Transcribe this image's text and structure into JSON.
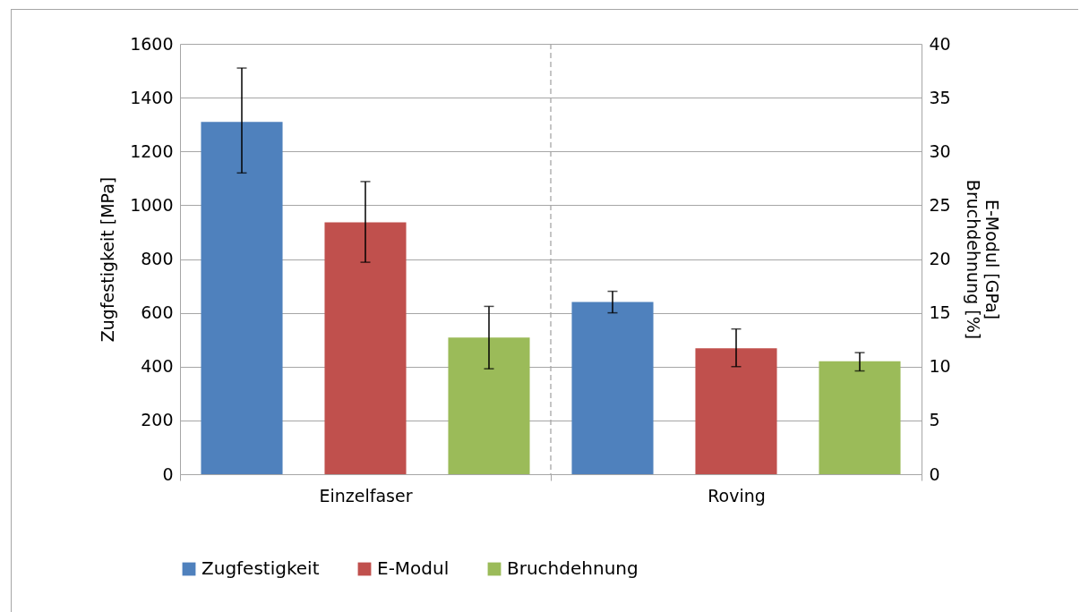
{
  "chart_data": {
    "type": "bar",
    "categories": [
      "Einzelfaser",
      "Roving"
    ],
    "ylabel": "Zugfestigkeit [MPa]",
    "y2label": "E-Modul [GPa]\nBruchdehnung [%]",
    "ylim": [
      0,
      1600
    ],
    "yticks": [
      0,
      200,
      400,
      600,
      800,
      1000,
      1200,
      1400,
      1600
    ],
    "y2lim": [
      0,
      40
    ],
    "y2ticks": [
      0,
      5,
      10,
      15,
      20,
      25,
      30,
      35,
      40
    ],
    "series": [
      {
        "name": "Zugfestigkeit",
        "color": "#4f81bd",
        "values": [
          1310,
          640
        ],
        "errors": [
          [
            1120,
            1510
          ],
          [
            600,
            680
          ]
        ]
      },
      {
        "name": "E-Modul",
        "color": "#c0504d",
        "axis": "y2",
        "values": [
          23.4,
          11.7
        ],
        "errors": [
          [
            19.7,
            27.2
          ],
          [
            10,
            13.5
          ]
        ]
      },
      {
        "name": "Bruchdehnung",
        "color": "#9bbb59",
        "axis": "y2",
        "values": [
          12.7,
          10.5
        ],
        "errors": [
          [
            9.8,
            15.6
          ],
          [
            9.6,
            11.3
          ]
        ]
      }
    ],
    "ref_lines": [
      {
        "axis": "x",
        "value": "Roving",
        "color": "#a6a6a6",
        "line_style": "dashed"
      }
    ],
    "grid": "y",
    "legend": "bottom"
  }
}
